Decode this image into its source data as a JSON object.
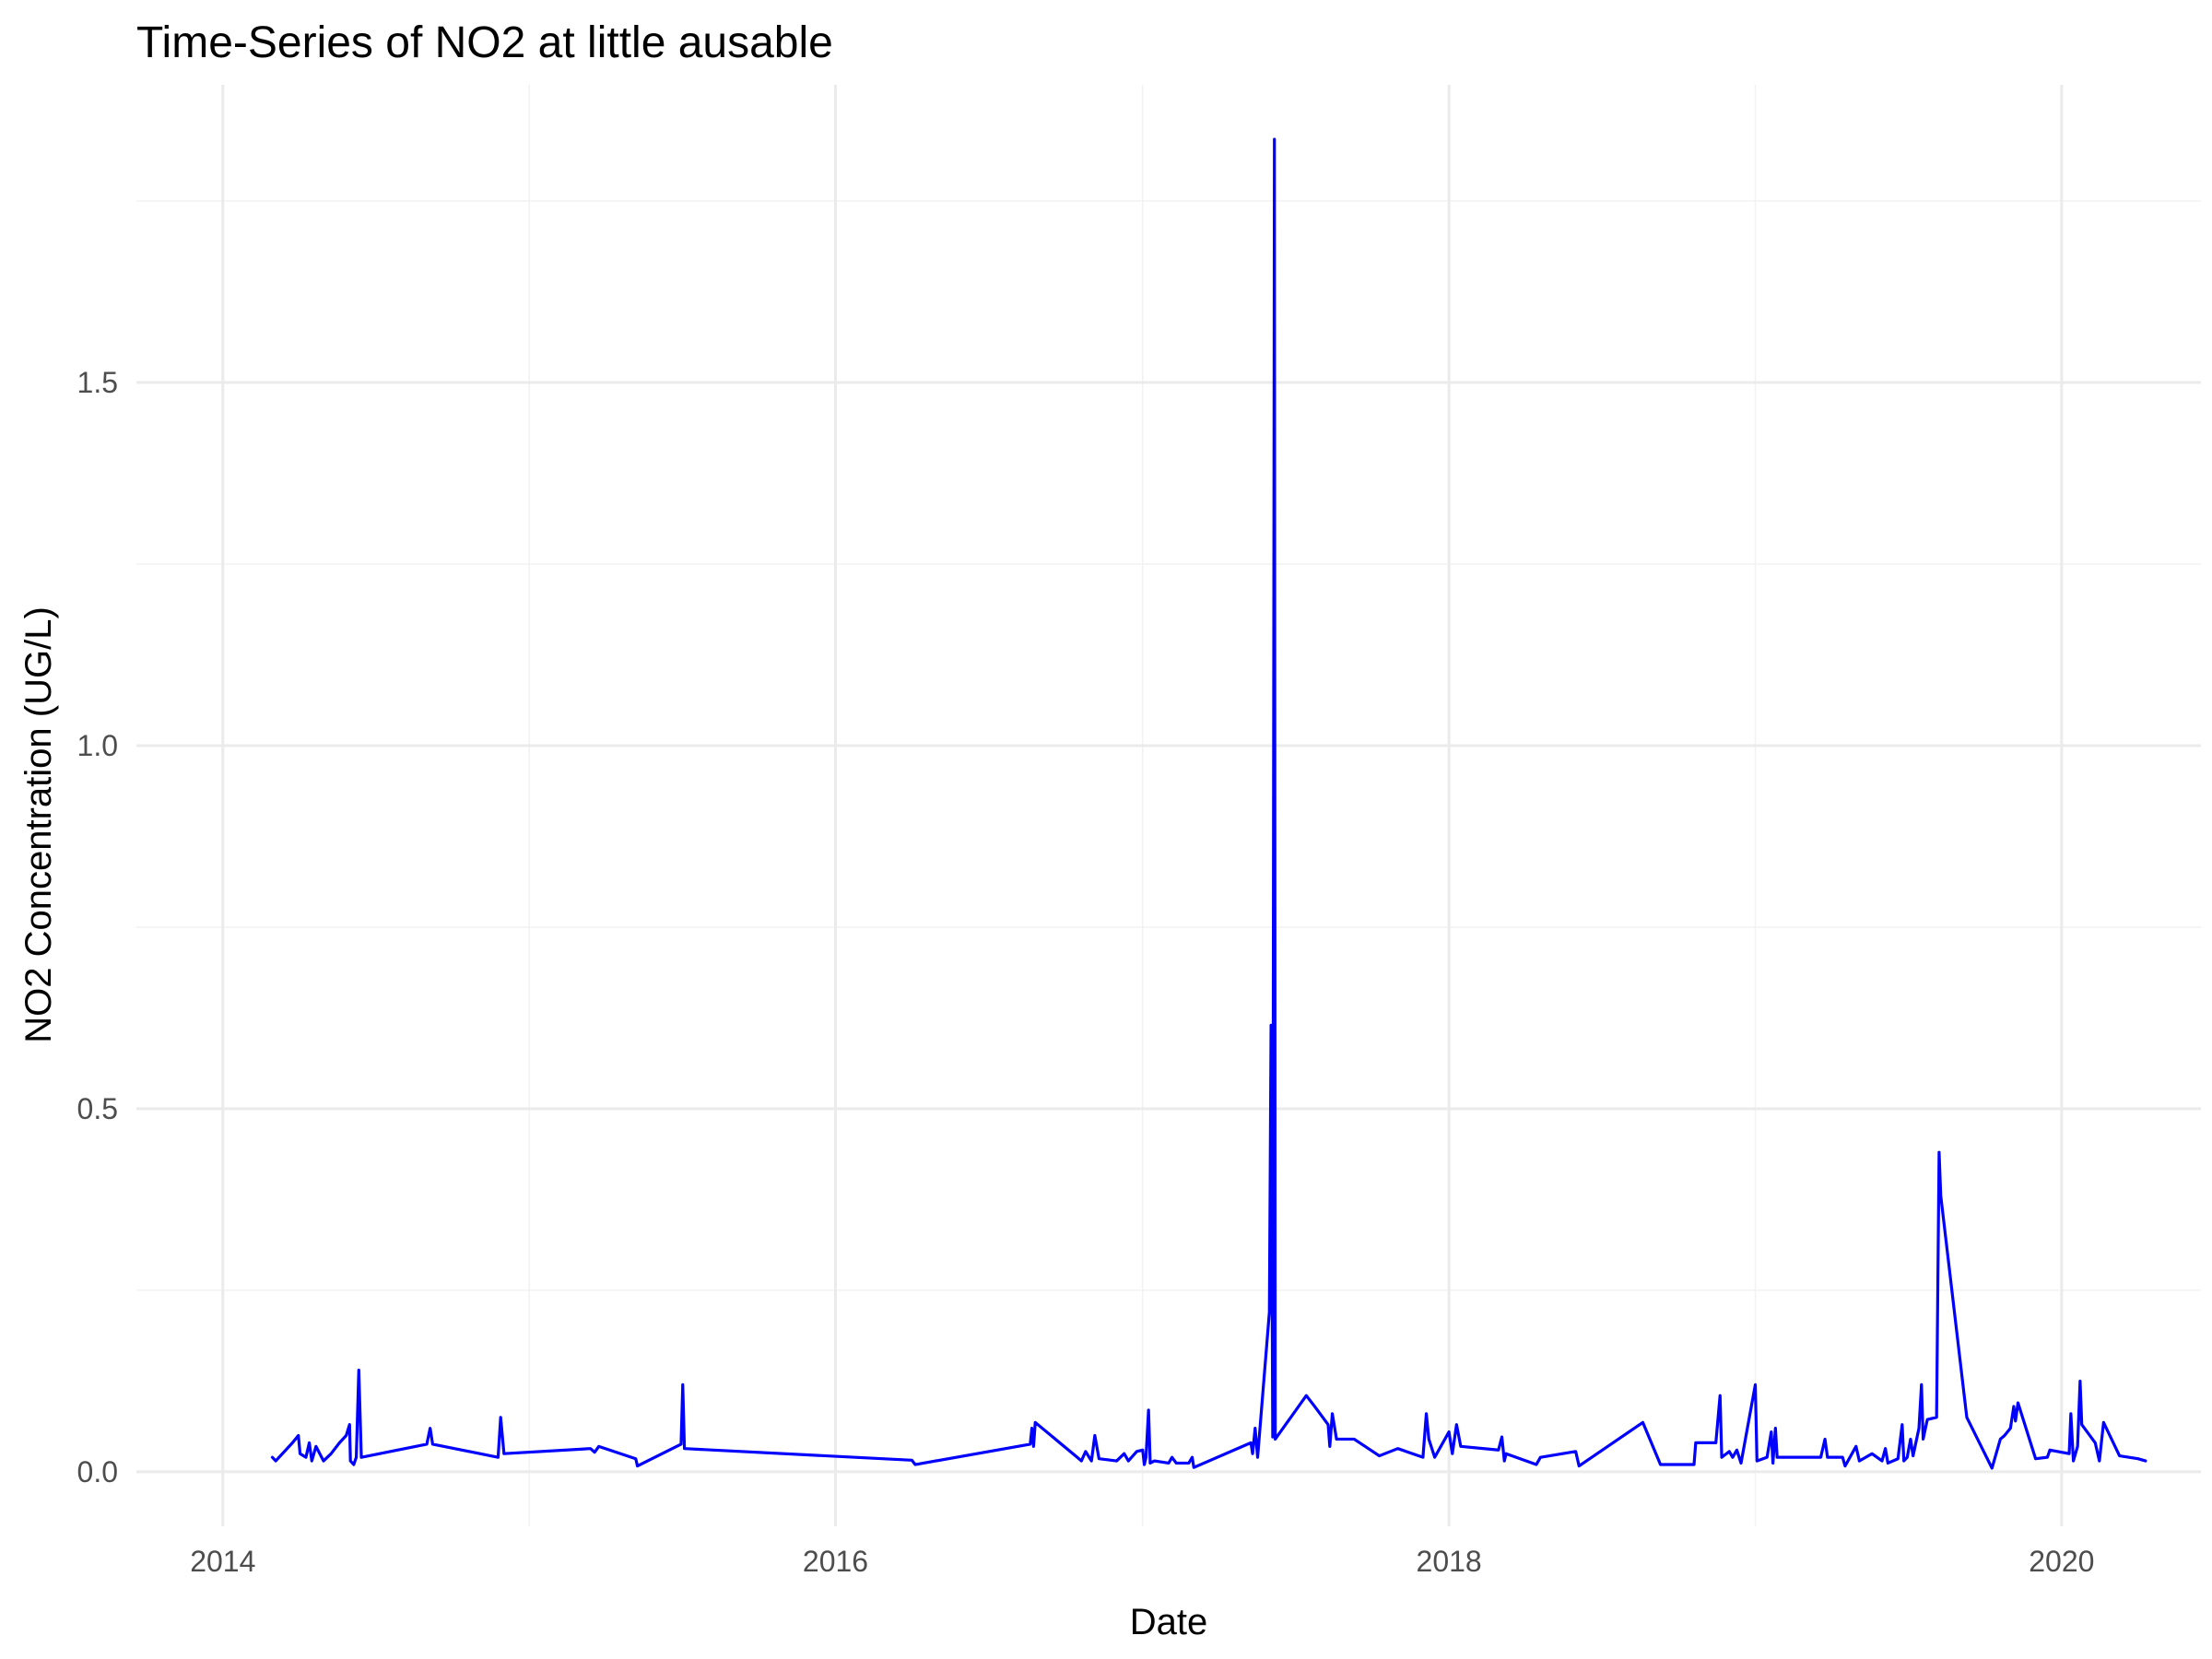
{
  "chart_data": {
    "type": "line",
    "title": "Time-Series of NO2 at little ausable",
    "xlabel": "Date",
    "ylabel": "NO2 Concentration (UG/L)",
    "xlim": [
      "2013-09-20",
      "2020-06-15"
    ],
    "ylim": [
      -0.075,
      1.91
    ],
    "x_ticks": [
      "2014-01-01",
      "2016-01-01",
      "2018-01-01",
      "2020-01-01"
    ],
    "x_tick_labels": [
      "2014",
      "2016",
      "2018",
      "2020"
    ],
    "y_ticks": [
      0.0,
      0.5,
      1.0,
      1.5
    ],
    "y_tick_labels": [
      "0.0",
      "0.5",
      "1.0",
      "1.5"
    ],
    "grid": true,
    "legend": "none",
    "series": [
      {
        "color": "#0000ff",
        "points": [
          [
            "2014-03-01",
            0.02
          ],
          [
            "2014-03-05",
            0.015
          ],
          [
            "2014-03-25",
            0.04
          ],
          [
            "2014-04-01",
            0.05
          ],
          [
            "2014-04-03",
            0.025
          ],
          [
            "2014-04-10",
            0.02
          ],
          [
            "2014-04-14",
            0.04
          ],
          [
            "2014-04-17",
            0.015
          ],
          [
            "2014-04-22",
            0.035
          ],
          [
            "2014-05-01",
            0.015
          ],
          [
            "2014-05-10",
            0.025
          ],
          [
            "2014-05-20",
            0.04
          ],
          [
            "2014-05-28",
            0.05
          ],
          [
            "2014-06-01",
            0.065
          ],
          [
            "2014-06-02",
            0.015
          ],
          [
            "2014-06-06",
            0.01
          ],
          [
            "2014-06-09",
            0.02
          ],
          [
            "2014-06-12",
            0.14
          ],
          [
            "2014-06-15",
            0.02
          ],
          [
            "2014-09-01",
            0.038
          ],
          [
            "2014-09-05",
            0.06
          ],
          [
            "2014-09-08",
            0.038
          ],
          [
            "2014-11-25",
            0.02
          ],
          [
            "2014-11-28",
            0.075
          ],
          [
            "2014-12-02",
            0.025
          ],
          [
            "2015-03-15",
            0.032
          ],
          [
            "2015-03-20",
            0.027
          ],
          [
            "2015-03-25",
            0.035
          ],
          [
            "2015-05-08",
            0.018
          ],
          [
            "2015-05-10",
            0.008
          ],
          [
            "2015-07-01",
            0.038
          ],
          [
            "2015-07-03",
            0.12
          ],
          [
            "2015-07-05",
            0.032
          ],
          [
            "2016-04-01",
            0.016
          ],
          [
            "2016-04-05",
            0.01
          ],
          [
            "2016-08-20",
            0.038
          ],
          [
            "2016-08-22",
            0.06
          ],
          [
            "2016-08-24",
            0.035
          ],
          [
            "2016-08-26",
            0.068
          ],
          [
            "2016-10-15",
            0.02
          ],
          [
            "2016-10-20",
            0.015
          ],
          [
            "2016-10-25",
            0.028
          ],
          [
            "2016-11-01",
            0.015
          ],
          [
            "2016-11-05",
            0.05
          ],
          [
            "2016-11-10",
            0.018
          ],
          [
            "2016-12-01",
            0.015
          ],
          [
            "2016-12-10",
            0.025
          ],
          [
            "2016-12-15",
            0.015
          ],
          [
            "2016-12-25",
            0.028
          ],
          [
            "2017-01-01",
            0.03
          ],
          [
            "2017-01-03",
            0.01
          ],
          [
            "2017-01-05",
            0.02
          ],
          [
            "2017-01-08",
            0.085
          ],
          [
            "2017-01-10",
            0.012
          ],
          [
            "2017-01-15",
            0.015
          ],
          [
            "2017-02-01",
            0.012
          ],
          [
            "2017-02-05",
            0.02
          ],
          [
            "2017-02-10",
            0.012
          ],
          [
            "2017-02-25",
            0.012
          ],
          [
            "2017-03-01",
            0.02
          ],
          [
            "2017-03-03",
            0.006
          ],
          [
            "2017-05-10",
            0.04
          ],
          [
            "2017-05-12",
            0.025
          ],
          [
            "2017-05-15",
            0.06
          ],
          [
            "2017-05-18",
            0.02
          ],
          [
            "2017-06-01",
            0.22
          ],
          [
            "2017-06-03",
            0.615
          ],
          [
            "2017-06-05",
            0.048
          ],
          [
            "2017-06-07",
            1.835
          ],
          [
            "2017-06-08",
            0.045
          ],
          [
            "2017-07-15",
            0.105
          ],
          [
            "2017-07-25",
            0.09
          ],
          [
            "2017-08-10",
            0.065
          ],
          [
            "2017-08-12",
            0.035
          ],
          [
            "2017-08-15",
            0.08
          ],
          [
            "2017-08-20",
            0.045
          ],
          [
            "2017-09-10",
            0.045
          ],
          [
            "2017-10-10",
            0.022
          ],
          [
            "2017-11-01",
            0.032
          ],
          [
            "2017-12-01",
            0.02
          ],
          [
            "2017-12-05",
            0.08
          ],
          [
            "2017-12-08",
            0.045
          ],
          [
            "2017-12-15",
            0.02
          ],
          [
            "2018-01-01",
            0.055
          ],
          [
            "2018-01-05",
            0.025
          ],
          [
            "2018-01-10",
            0.065
          ],
          [
            "2018-01-15",
            0.035
          ],
          [
            "2018-03-01",
            0.03
          ],
          [
            "2018-03-05",
            0.048
          ],
          [
            "2018-03-08",
            0.015
          ],
          [
            "2018-03-10",
            0.025
          ],
          [
            "2018-04-15",
            0.01
          ],
          [
            "2018-04-20",
            0.02
          ],
          [
            "2018-06-01",
            0.028
          ],
          [
            "2018-06-05",
            0.008
          ],
          [
            "2018-08-20",
            0.068
          ],
          [
            "2018-09-10",
            0.01
          ],
          [
            "2018-10-20",
            0.01
          ],
          [
            "2018-10-22",
            0.04
          ],
          [
            "2018-11-15",
            0.04
          ],
          [
            "2018-11-20",
            0.105
          ],
          [
            "2018-11-22",
            0.02
          ],
          [
            "2018-12-01",
            0.028
          ],
          [
            "2018-12-05",
            0.02
          ],
          [
            "2018-12-10",
            0.03
          ],
          [
            "2018-12-15",
            0.012
          ],
          [
            "2019-01-01",
            0.12
          ],
          [
            "2019-01-03",
            0.015
          ],
          [
            "2019-01-15",
            0.02
          ],
          [
            "2019-01-20",
            0.055
          ],
          [
            "2019-01-22",
            0.012
          ],
          [
            "2019-01-25",
            0.06
          ],
          [
            "2019-01-27",
            0.02
          ],
          [
            "2019-03-20",
            0.02
          ],
          [
            "2019-03-25",
            0.045
          ],
          [
            "2019-03-28",
            0.02
          ],
          [
            "2019-04-15",
            0.02
          ],
          [
            "2019-04-18",
            0.008
          ],
          [
            "2019-05-01",
            0.035
          ],
          [
            "2019-05-05",
            0.015
          ],
          [
            "2019-05-20",
            0.025
          ],
          [
            "2019-06-01",
            0.015
          ],
          [
            "2019-06-05",
            0.032
          ],
          [
            "2019-06-08",
            0.012
          ],
          [
            "2019-06-20",
            0.018
          ],
          [
            "2019-06-25",
            0.065
          ],
          [
            "2019-06-27",
            0.015
          ],
          [
            "2019-07-01",
            0.02
          ],
          [
            "2019-07-05",
            0.045
          ],
          [
            "2019-07-08",
            0.022
          ],
          [
            "2019-07-15",
            0.06
          ],
          [
            "2019-07-18",
            0.12
          ],
          [
            "2019-07-20",
            0.045
          ],
          [
            "2019-07-25",
            0.072
          ],
          [
            "2019-08-05",
            0.075
          ],
          [
            "2019-08-08",
            0.44
          ],
          [
            "2019-08-10",
            0.38
          ],
          [
            "2019-09-10",
            0.075
          ],
          [
            "2019-10-10",
            0.005
          ],
          [
            "2019-10-20",
            0.045
          ],
          [
            "2019-10-25",
            0.05
          ],
          [
            "2019-11-01",
            0.06
          ],
          [
            "2019-11-05",
            0.09
          ],
          [
            "2019-11-07",
            0.07
          ],
          [
            "2019-11-10",
            0.095
          ],
          [
            "2019-12-01",
            0.018
          ],
          [
            "2019-12-15",
            0.02
          ],
          [
            "2019-12-18",
            0.03
          ],
          [
            "2020-01-10",
            0.025
          ],
          [
            "2020-01-12",
            0.08
          ],
          [
            "2020-01-15",
            0.015
          ],
          [
            "2020-01-20",
            0.035
          ],
          [
            "2020-01-23",
            0.125
          ],
          [
            "2020-01-25",
            0.065
          ],
          [
            "2020-02-10",
            0.04
          ],
          [
            "2020-02-15",
            0.015
          ],
          [
            "2020-02-20",
            0.068
          ],
          [
            "2020-03-10",
            0.022
          ],
          [
            "2020-04-01",
            0.018
          ],
          [
            "2020-04-10",
            0.015
          ]
        ]
      }
    ]
  }
}
